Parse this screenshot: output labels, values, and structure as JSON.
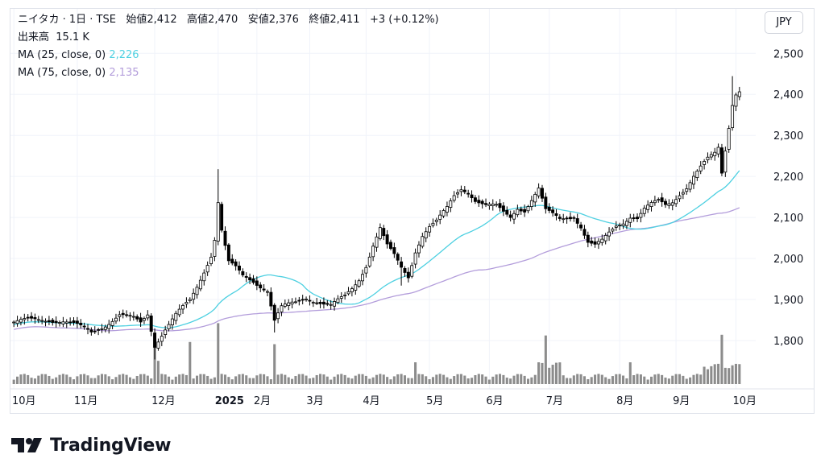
{
  "header": {
    "symbol_line": "ニイタカ · 1日 · TSE",
    "open_label": "始値",
    "open_value": "2,412",
    "high_label": "高値",
    "high_value": "2,470",
    "low_label": "安値",
    "low_value": "2,376",
    "close_label": "終値",
    "close_value": "2,411",
    "change": "+3 (+0.12%)",
    "volume_label": "出来高",
    "volume_value": "15.1 K",
    "ma25_label": "MA (25, close, 0)",
    "ma25_value": "2,226",
    "ma75_label": "MA (75, close, 0)",
    "ma75_value": "2,135",
    "currency": "JPY"
  },
  "brand": {
    "name": "TradingView"
  },
  "colors": {
    "up_candle": "#ffffff",
    "down_candle": "#000000",
    "wick": "#000000",
    "ma25": "#4dd0e1",
    "ma75": "#b39ddb",
    "volume": "#8c8c8c",
    "grid": "#f0f3fa"
  },
  "chart_data": {
    "type": "candlestick",
    "y_axis": {
      "ticks": [
        1800,
        1900,
        2000,
        2100,
        2200,
        2300,
        2400,
        2500
      ],
      "tick_labels": [
        "1,800",
        "1,900",
        "2,000",
        "2,100",
        "2,200",
        "2,300",
        "2,400",
        "2,500"
      ],
      "range": [
        1745,
        2530
      ]
    },
    "x_axis": {
      "tick_labels": [
        "10月",
        "11月",
        "12月",
        "2025",
        "2月",
        "3月",
        "4月",
        "5月",
        "6月",
        "7月",
        "8月",
        "9月",
        "10月"
      ]
    },
    "grid": true,
    "anchors": [
      [
        0,
        1845
      ],
      [
        10,
        1852
      ],
      [
        14,
        1848
      ],
      [
        18,
        1835
      ],
      [
        22,
        1820
      ],
      [
        26,
        1840
      ],
      [
        30,
        1862
      ],
      [
        34,
        1852
      ],
      [
        36,
        1842
      ],
      [
        38,
        1865
      ],
      [
        40,
        1790
      ],
      [
        43,
        1830
      ],
      [
        46,
        1862
      ],
      [
        50,
        1895
      ],
      [
        52,
        1930
      ],
      [
        54,
        1970
      ],
      [
        56,
        2010
      ],
      [
        57,
        2050
      ],
      [
        58,
        2140
      ],
      [
        59,
        2070
      ],
      [
        61,
        1990
      ],
      [
        63,
        1975
      ],
      [
        65,
        1955
      ],
      [
        68,
        1945
      ],
      [
        70,
        1935
      ],
      [
        72,
        1925
      ],
      [
        74,
        1850
      ],
      [
        76,
        1880
      ],
      [
        80,
        1890
      ],
      [
        83,
        1905
      ],
      [
        87,
        1895
      ],
      [
        90,
        1885
      ],
      [
        94,
        1905
      ],
      [
        96,
        1925
      ],
      [
        98,
        1950
      ],
      [
        100,
        1985
      ],
      [
        102,
        2035
      ],
      [
        104,
        2075
      ],
      [
        106,
        2030
      ],
      [
        108,
        2005
      ],
      [
        110,
        1975
      ],
      [
        112,
        1955
      ],
      [
        114,
        2020
      ],
      [
        116,
        2060
      ],
      [
        118,
        2080
      ],
      [
        120,
        2090
      ],
      [
        123,
        2120
      ],
      [
        125,
        2150
      ],
      [
        127,
        2170
      ],
      [
        129,
        2165
      ],
      [
        131,
        2145
      ],
      [
        134,
        2130
      ],
      [
        137,
        2125
      ],
      [
        139,
        2110
      ],
      [
        141,
        2100
      ],
      [
        143,
        2125
      ],
      [
        145,
        2120
      ],
      [
        147,
        2145
      ],
      [
        149,
        2170
      ],
      [
        151,
        2115
      ],
      [
        153,
        2105
      ],
      [
        155,
        2095
      ],
      [
        157,
        2100
      ],
      [
        159,
        2105
      ],
      [
        161,
        2080
      ],
      [
        163,
        2040
      ],
      [
        165,
        2030
      ],
      [
        167,
        2040
      ],
      [
        169,
        2060
      ],
      [
        171,
        2080
      ],
      [
        173,
        2090
      ],
      [
        175,
        2105
      ],
      [
        177,
        2100
      ],
      [
        179,
        2120
      ],
      [
        181,
        2130
      ],
      [
        183,
        2138
      ],
      [
        185,
        2130
      ],
      [
        187,
        2140
      ],
      [
        189,
        2160
      ],
      [
        191,
        2175
      ],
      [
        193,
        2200
      ],
      [
        195,
        2220
      ],
      [
        197,
        2240
      ],
      [
        199,
        2255
      ],
      [
        200,
        2270
      ],
      [
        201,
        2210
      ],
      [
        204,
        2380
      ],
      [
        205,
        2405
      ],
      [
        206,
        2411
      ]
    ],
    "volume_spikes": [
      [
        40,
        70
      ],
      [
        41,
        32
      ],
      [
        50,
        58
      ],
      [
        58,
        84
      ],
      [
        74,
        55
      ],
      [
        114,
        30
      ],
      [
        151,
        67
      ],
      [
        175,
        30
      ],
      [
        201,
        68
      ]
    ],
    "volume_baseline": 6,
    "ma_25": {
      "name": "MA (25, close, 0)",
      "last": 2226
    },
    "ma_75": {
      "name": "MA (75, close, 0)",
      "last": 2135
    }
  }
}
